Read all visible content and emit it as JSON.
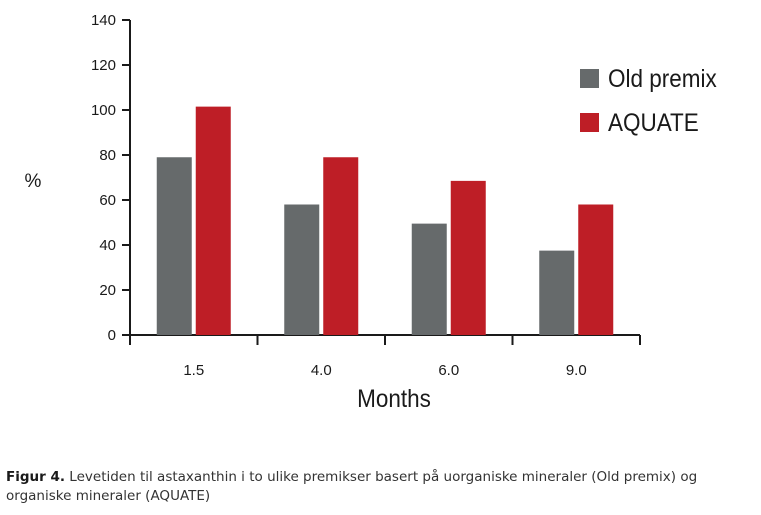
{
  "chart_data": {
    "type": "bar",
    "categories": [
      "1.5",
      "4.0",
      "6.0",
      "9.0"
    ],
    "series": [
      {
        "name": "Old premix",
        "values": [
          79,
          58,
          49.5,
          37.5
        ],
        "color": "#666a6b"
      },
      {
        "name": "AQUATE",
        "values": [
          101.5,
          79,
          68.5,
          58
        ],
        "color": "#be1e26"
      }
    ],
    "title": "",
    "xlabel": "Months",
    "ylabel": "%",
    "ylim": [
      0,
      140
    ],
    "yticks": [
      "0",
      "20",
      "40",
      "60",
      "80",
      "100",
      "120",
      "140"
    ],
    "grid": false,
    "legend_position": "top-right"
  },
  "caption": {
    "label": "Figur 4.",
    "text": " Levetiden til astaxanthin i to ulike premikser basert på uorganiske mineraler (Old premix) og organiske mineraler (AQUATE)"
  }
}
